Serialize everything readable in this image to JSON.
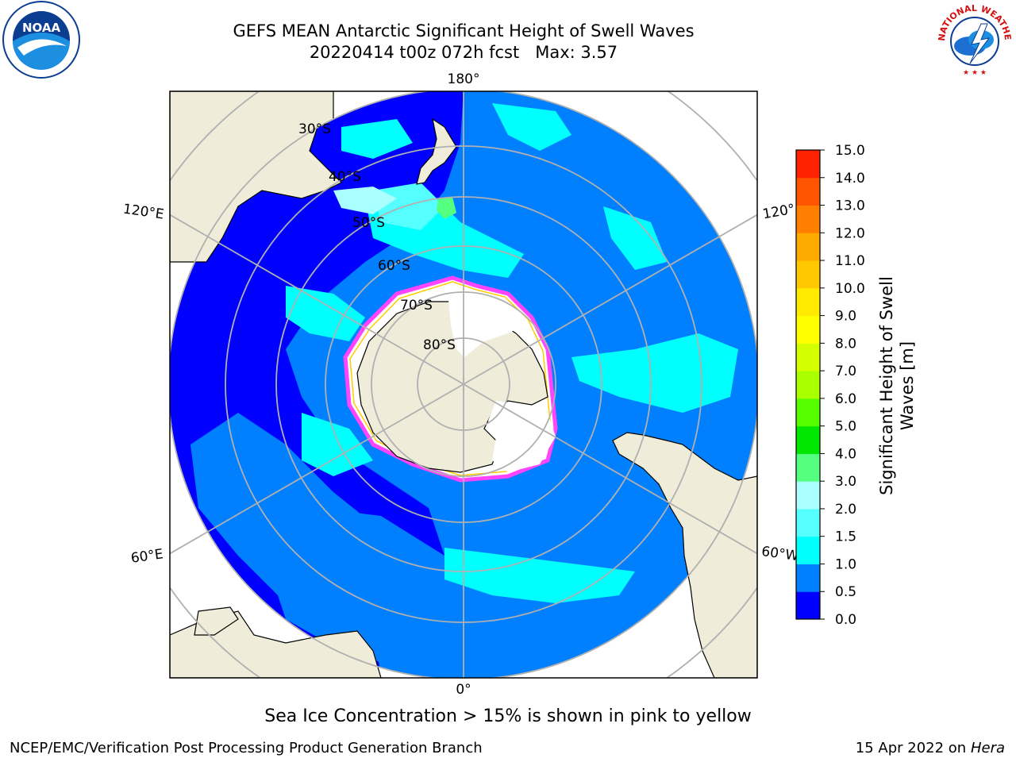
{
  "header": {
    "title_line1": "GEFS MEAN Antarctic Significant Height of Swell Waves",
    "title_line2": "20220414 t00z 072h fcst   Max: 3.57"
  },
  "logos": {
    "left": "noaa-logo",
    "right": "national-weather-service-logo",
    "left_text": "NOAA",
    "right_text": "NATIONAL WEATHER SERVICE"
  },
  "map": {
    "projection": "south-polar-stereographic",
    "colors": {
      "land": "#efedda",
      "ice_sheet": "#ffffff",
      "grid": "#b0b0b0",
      "sea_ice_edge": [
        "#ff44ff",
        "#ffcc00"
      ]
    },
    "longitude_labels": [
      "180°",
      "120°E",
      "120°",
      "60°E",
      "60°W",
      "0°"
    ],
    "latitude_labels": [
      "30°S",
      "40°S",
      "50°S",
      "60°S",
      "70°S",
      "80°S"
    ]
  },
  "colorbar": {
    "label_line1": "Significant Height of Swell",
    "label_line2": "Waves [m]",
    "ticks": [
      "0.0",
      "0.5",
      "1.0",
      "1.5",
      "2.0",
      "3.0",
      "4.0",
      "5.0",
      "6.0",
      "7.0",
      "8.0",
      "9.0",
      "10.0",
      "11.0",
      "12.0",
      "13.0",
      "14.0",
      "15.0"
    ],
    "colors": [
      "#0000ff",
      "#0080ff",
      "#00ffff",
      "#55ffff",
      "#aaffff",
      "#55ff7f",
      "#00e600",
      "#55ff00",
      "#aaff00",
      "#d4ff00",
      "#ffff00",
      "#ffea00",
      "#ffc800",
      "#ffaa00",
      "#ff8000",
      "#ff5500",
      "#ff2200"
    ]
  },
  "caption": "Sea Ice Concentration > 15% is shown in pink to yellow",
  "footer": {
    "left": "NCEP/EMC/Verification Post Processing Product Generation Branch",
    "right_prefix": "15 Apr 2022 on ",
    "right_host": "Hera"
  }
}
